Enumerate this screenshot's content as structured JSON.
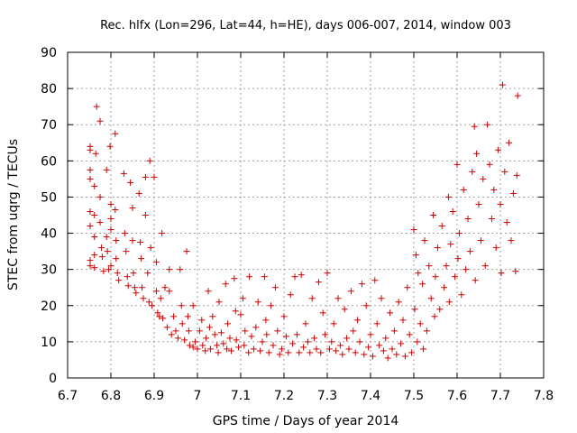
{
  "chart_data": {
    "type": "scatter",
    "title": "Rec. hlfx (Lon=296, Lat=44, h=HE), days 006-007, 2014, window 003",
    "xlabel": "GPS time / Days of year 2014",
    "ylabel": "STEC from uqrg / TECUs",
    "xlim": [
      6.7,
      7.8
    ],
    "ylim": [
      0,
      90
    ],
    "x_ticks": [
      "6.7",
      "6.8",
      "6.9",
      "7",
      "7.1",
      "7.2",
      "7.3",
      "7.4",
      "7.5",
      "7.6",
      "7.7",
      "7.8"
    ],
    "y_ticks": [
      "0",
      "10",
      "20",
      "30",
      "40",
      "50",
      "60",
      "70",
      "80",
      "90"
    ],
    "grid": true,
    "marker": "plus",
    "series": [
      {
        "name": "STEC",
        "color": "#cc0000",
        "points": [
          [
            6.752,
            64
          ],
          [
            6.752,
            63
          ],
          [
            6.752,
            57.5
          ],
          [
            6.752,
            55
          ],
          [
            6.752,
            46
          ],
          [
            6.752,
            42
          ],
          [
            6.752,
            32.5
          ],
          [
            6.752,
            31
          ],
          [
            6.762,
            53
          ],
          [
            6.762,
            45
          ],
          [
            6.762,
            39
          ],
          [
            6.762,
            34
          ],
          [
            6.762,
            30.5
          ],
          [
            6.765,
            62
          ],
          [
            6.767,
            75
          ],
          [
            6.775,
            71
          ],
          [
            6.775,
            50
          ],
          [
            6.775,
            43
          ],
          [
            6.778,
            36
          ],
          [
            6.78,
            33.5
          ],
          [
            6.783,
            29.5
          ],
          [
            6.79,
            57.5
          ],
          [
            6.79,
            39
          ],
          [
            6.792,
            35
          ],
          [
            6.795,
            30
          ],
          [
            6.798,
            64
          ],
          [
            6.8,
            48
          ],
          [
            6.8,
            44
          ],
          [
            6.8,
            41
          ],
          [
            6.8,
            31
          ],
          [
            6.81,
            67.5
          ],
          [
            6.81,
            46.5
          ],
          [
            6.812,
            38
          ],
          [
            6.812,
            33
          ],
          [
            6.815,
            29
          ],
          [
            6.818,
            27
          ],
          [
            6.83,
            56.5
          ],
          [
            6.832,
            40
          ],
          [
            6.835,
            35
          ],
          [
            6.838,
            28
          ],
          [
            6.84,
            25.5
          ],
          [
            6.845,
            54
          ],
          [
            6.85,
            47
          ],
          [
            6.85,
            38
          ],
          [
            6.852,
            29
          ],
          [
            6.855,
            25
          ],
          [
            6.858,
            23.5
          ],
          [
            6.865,
            51
          ],
          [
            6.868,
            37.5
          ],
          [
            6.87,
            33
          ],
          [
            6.872,
            25
          ],
          [
            6.875,
            22
          ],
          [
            6.88,
            55.5
          ],
          [
            6.88,
            45
          ],
          [
            6.885,
            29
          ],
          [
            6.888,
            21
          ],
          [
            6.89,
            60
          ],
          [
            6.892,
            36
          ],
          [
            6.895,
            20
          ],
          [
            6.9,
            55.5
          ],
          [
            6.905,
            32
          ],
          [
            6.905,
            24
          ],
          [
            6.908,
            18
          ],
          [
            6.912,
            17
          ],
          [
            6.915,
            22
          ],
          [
            6.918,
            40
          ],
          [
            6.92,
            16.5
          ],
          [
            6.925,
            25
          ],
          [
            6.93,
            14
          ],
          [
            6.935,
            30
          ],
          [
            6.935,
            24
          ],
          [
            6.94,
            12
          ],
          [
            6.945,
            17
          ],
          [
            6.95,
            13
          ],
          [
            6.955,
            11
          ],
          [
            6.96,
            30
          ],
          [
            6.963,
            20
          ],
          [
            6.965,
            15
          ],
          [
            6.97,
            10.5
          ],
          [
            6.975,
            35
          ],
          [
            6.978,
            17
          ],
          [
            6.98,
            13
          ],
          [
            6.982,
            9
          ],
          [
            6.99,
            20
          ],
          [
            6.99,
            8.5
          ],
          [
            6.995,
            10
          ],
          [
            7.0,
            8
          ],
          [
            7.005,
            13
          ],
          [
            7.01,
            16
          ],
          [
            7.012,
            9
          ],
          [
            7.018,
            7.5
          ],
          [
            7.02,
            11
          ],
          [
            7.025,
            24
          ],
          [
            7.028,
            14
          ],
          [
            7.03,
            8
          ],
          [
            7.035,
            17
          ],
          [
            7.04,
            12
          ],
          [
            7.045,
            9
          ],
          [
            7.048,
            7
          ],
          [
            7.05,
            21
          ],
          [
            7.055,
            12.5
          ],
          [
            7.06,
            9.5
          ],
          [
            7.065,
            26
          ],
          [
            7.068,
            8
          ],
          [
            7.07,
            15
          ],
          [
            7.075,
            11
          ],
          [
            7.078,
            7.5
          ],
          [
            7.085,
            27.5
          ],
          [
            7.088,
            18.5
          ],
          [
            7.09,
            10.5
          ],
          [
            7.095,
            8.5
          ],
          [
            7.1,
            17.5
          ],
          [
            7.105,
            22
          ],
          [
            7.108,
            9
          ],
          [
            7.11,
            13
          ],
          [
            7.118,
            7
          ],
          [
            7.12,
            28
          ],
          [
            7.125,
            11.5
          ],
          [
            7.13,
            8
          ],
          [
            7.135,
            14
          ],
          [
            7.14,
            21
          ],
          [
            7.145,
            7.5
          ],
          [
            7.15,
            10
          ],
          [
            7.155,
            28
          ],
          [
            7.158,
            16
          ],
          [
            7.16,
            12
          ],
          [
            7.165,
            7
          ],
          [
            7.17,
            20
          ],
          [
            7.175,
            9
          ],
          [
            7.18,
            25
          ],
          [
            7.185,
            13
          ],
          [
            7.19,
            6.5
          ],
          [
            7.195,
            8
          ],
          [
            7.2,
            17
          ],
          [
            7.205,
            11.5
          ],
          [
            7.21,
            7
          ],
          [
            7.215,
            23
          ],
          [
            7.22,
            9.5
          ],
          [
            7.225,
            28
          ],
          [
            7.23,
            12
          ],
          [
            7.235,
            7
          ],
          [
            7.24,
            28.5
          ],
          [
            7.245,
            8.5
          ],
          [
            7.25,
            15
          ],
          [
            7.255,
            10
          ],
          [
            7.26,
            7
          ],
          [
            7.265,
            22
          ],
          [
            7.27,
            11
          ],
          [
            7.275,
            8
          ],
          [
            7.28,
            26.5
          ],
          [
            7.285,
            7
          ],
          [
            7.29,
            18
          ],
          [
            7.295,
            12
          ],
          [
            7.3,
            29
          ],
          [
            7.305,
            8
          ],
          [
            7.31,
            10
          ],
          [
            7.315,
            15
          ],
          [
            7.32,
            7.5
          ],
          [
            7.325,
            22
          ],
          [
            7.33,
            9
          ],
          [
            7.335,
            6.5
          ],
          [
            7.34,
            19
          ],
          [
            7.345,
            11
          ],
          [
            7.35,
            8
          ],
          [
            7.355,
            24
          ],
          [
            7.36,
            13
          ],
          [
            7.365,
            7
          ],
          [
            7.37,
            16
          ],
          [
            7.375,
            10
          ],
          [
            7.38,
            26
          ],
          [
            7.385,
            6.5
          ],
          [
            7.39,
            20
          ],
          [
            7.395,
            8.5
          ],
          [
            7.4,
            12
          ],
          [
            7.405,
            6
          ],
          [
            7.41,
            27
          ],
          [
            7.415,
            15
          ],
          [
            7.42,
            9
          ],
          [
            7.425,
            22
          ],
          [
            7.43,
            7.5
          ],
          [
            7.435,
            11
          ],
          [
            7.44,
            5.5
          ],
          [
            7.445,
            18
          ],
          [
            7.45,
            8
          ],
          [
            7.455,
            13
          ],
          [
            7.46,
            6.5
          ],
          [
            7.465,
            21
          ],
          [
            7.47,
            9.5
          ],
          [
            7.475,
            16
          ],
          [
            7.48,
            6
          ],
          [
            7.485,
            25
          ],
          [
            7.49,
            12
          ],
          [
            7.495,
            7
          ],
          [
            7.5,
            41
          ],
          [
            7.502,
            19
          ],
          [
            7.505,
            34
          ],
          [
            7.508,
            10
          ],
          [
            7.51,
            29
          ],
          [
            7.515,
            15
          ],
          [
            7.52,
            26
          ],
          [
            7.522,
            8
          ],
          [
            7.525,
            38
          ],
          [
            7.53,
            13
          ],
          [
            7.535,
            31
          ],
          [
            7.54,
            22
          ],
          [
            7.545,
            45
          ],
          [
            7.548,
            17
          ],
          [
            7.55,
            28
          ],
          [
            7.555,
            36
          ],
          [
            7.56,
            19
          ],
          [
            7.565,
            42
          ],
          [
            7.57,
            25
          ],
          [
            7.575,
            31
          ],
          [
            7.58,
            50
          ],
          [
            7.582,
            21
          ],
          [
            7.585,
            37
          ],
          [
            7.59,
            46
          ],
          [
            7.595,
            28
          ],
          [
            7.6,
            59
          ],
          [
            7.602,
            33
          ],
          [
            7.605,
            40
          ],
          [
            7.61,
            23
          ],
          [
            7.615,
            52
          ],
          [
            7.62,
            30
          ],
          [
            7.625,
            44
          ],
          [
            7.63,
            35
          ],
          [
            7.635,
            57
          ],
          [
            7.64,
            69.5
          ],
          [
            7.642,
            27
          ],
          [
            7.645,
            62
          ],
          [
            7.65,
            48
          ],
          [
            7.655,
            38
          ],
          [
            7.66,
            55
          ],
          [
            7.665,
            31
          ],
          [
            7.67,
            70
          ],
          [
            7.675,
            59
          ],
          [
            7.68,
            44
          ],
          [
            7.685,
            52
          ],
          [
            7.69,
            36
          ],
          [
            7.695,
            63
          ],
          [
            7.7,
            48
          ],
          [
            7.702,
            29
          ],
          [
            7.705,
            81
          ],
          [
            7.71,
            57
          ],
          [
            7.715,
            43
          ],
          [
            7.72,
            65
          ],
          [
            7.725,
            38
          ],
          [
            7.73,
            51
          ],
          [
            7.735,
            29.5
          ],
          [
            7.738,
            56
          ],
          [
            7.74,
            78
          ]
        ]
      }
    ]
  }
}
